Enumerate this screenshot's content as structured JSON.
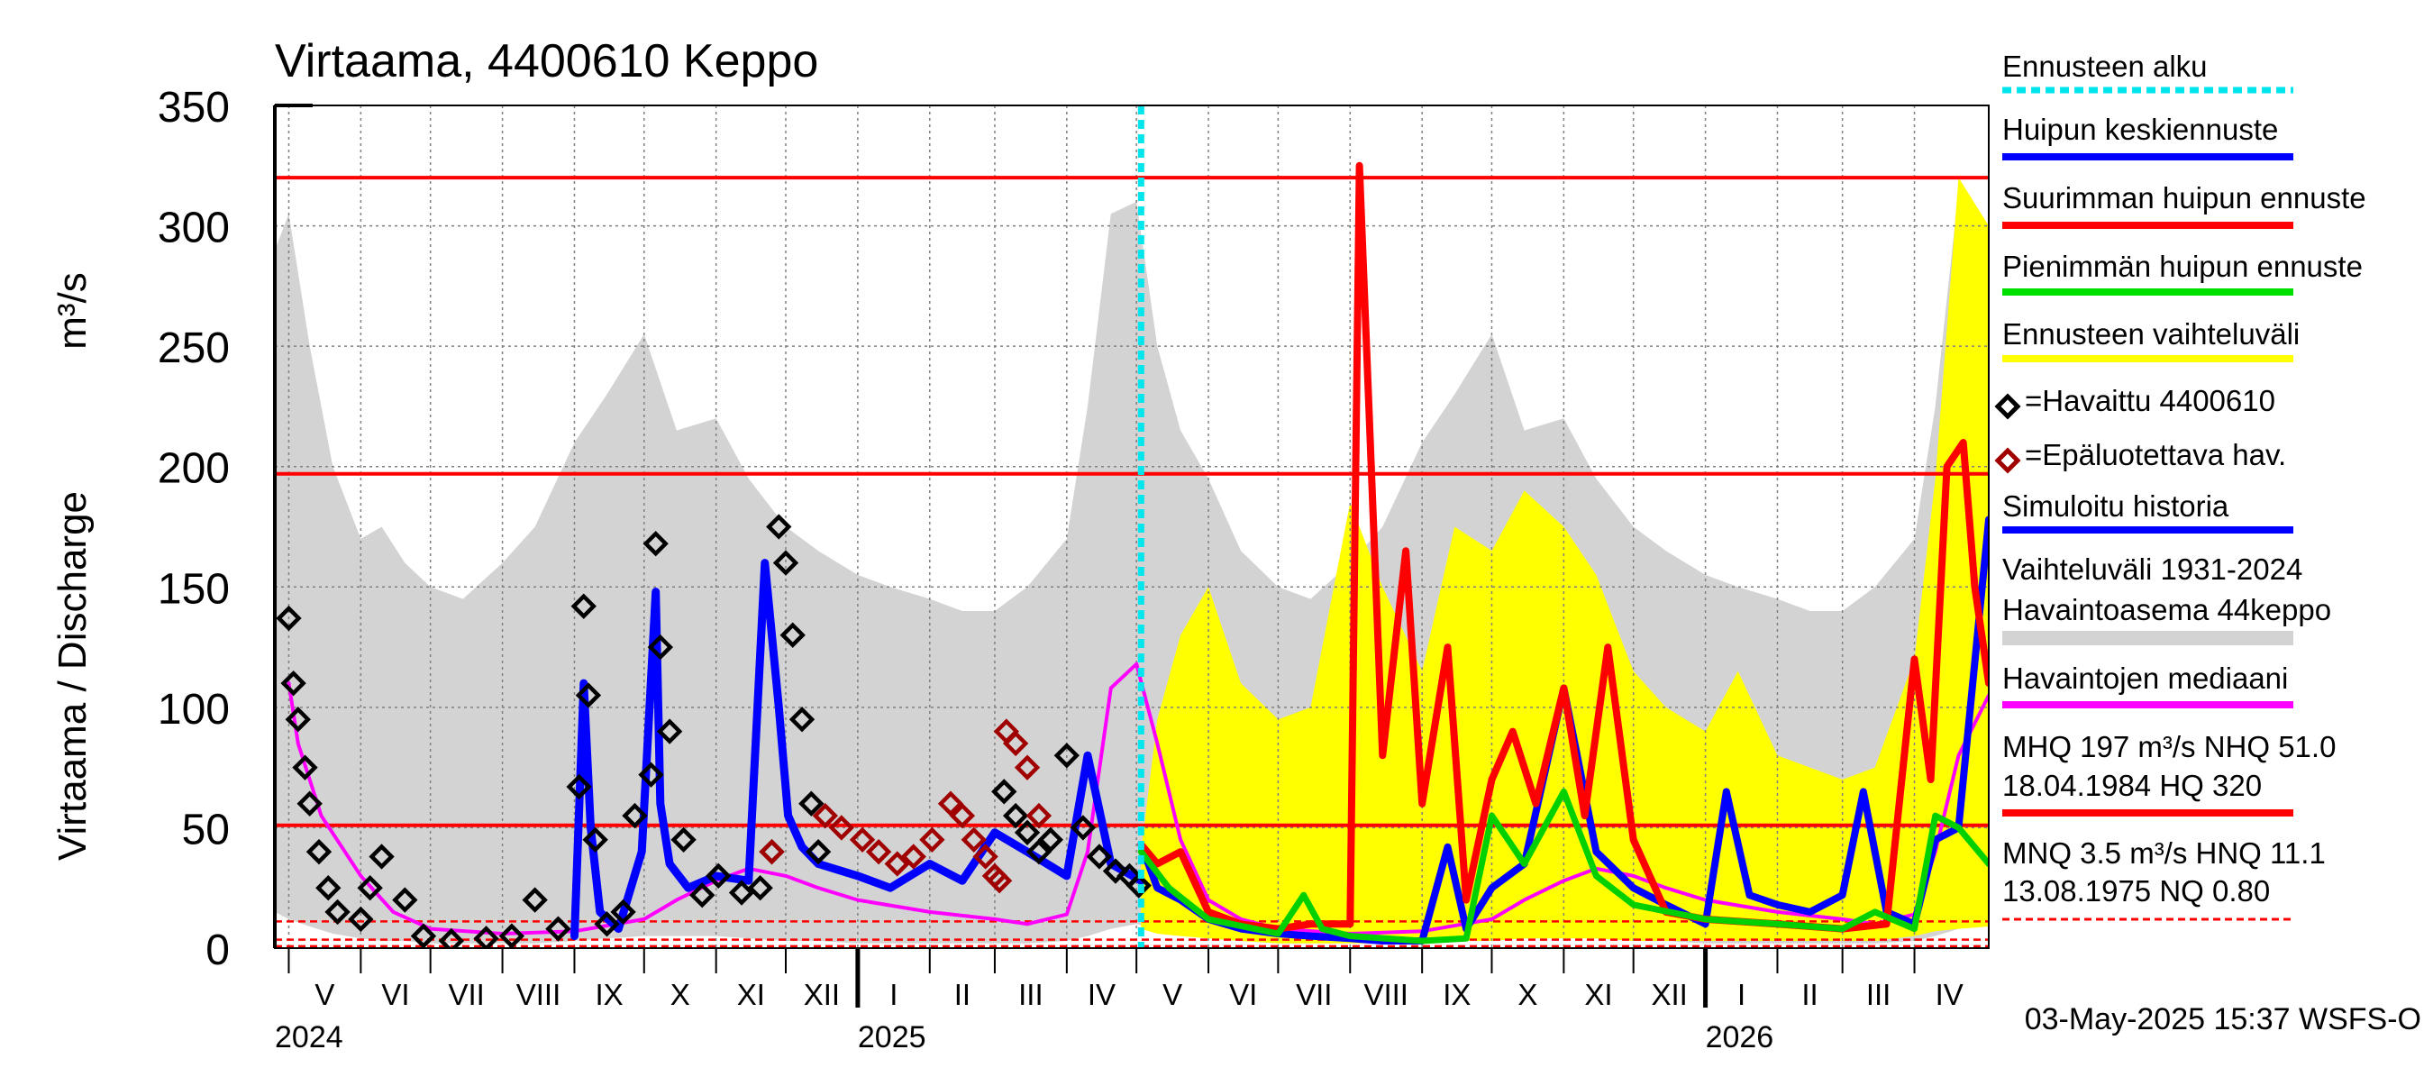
{
  "chart_data": {
    "type": "line",
    "title": "Virtaama, 4400610 Keppo",
    "ylabel": "Virtaama / Discharge",
    "yunit": "m³/s",
    "ylim": [
      0,
      350
    ],
    "yticks": [
      0,
      50,
      100,
      150,
      200,
      250,
      300,
      350
    ],
    "xlim": [
      "2024-04-25",
      "2026-05-03"
    ],
    "grid": true,
    "months": [
      {
        "label": "V",
        "start": "2024-05-01",
        "end": "2024-06-01"
      },
      {
        "label": "VI",
        "start": "2024-06-01",
        "end": "2024-07-01"
      },
      {
        "label": "VII",
        "start": "2024-07-01",
        "end": "2024-08-01"
      },
      {
        "label": "VIII",
        "start": "2024-08-01",
        "end": "2024-09-01"
      },
      {
        "label": "IX",
        "start": "2024-09-01",
        "end": "2024-10-01"
      },
      {
        "label": "X",
        "start": "2024-10-01",
        "end": "2024-11-01"
      },
      {
        "label": "XI",
        "start": "2024-11-01",
        "end": "2024-12-01"
      },
      {
        "label": "XII",
        "start": "2024-12-01",
        "end": "2025-01-01"
      },
      {
        "label": "I",
        "start": "2025-01-01",
        "end": "2025-02-01"
      },
      {
        "label": "II",
        "start": "2025-02-01",
        "end": "2025-03-01"
      },
      {
        "label": "III",
        "start": "2025-03-01",
        "end": "2025-04-01"
      },
      {
        "label": "IV",
        "start": "2025-04-01",
        "end": "2025-05-01"
      },
      {
        "label": "V",
        "start": "2025-05-01",
        "end": "2025-06-01"
      },
      {
        "label": "VI",
        "start": "2025-06-01",
        "end": "2025-07-01"
      },
      {
        "label": "VII",
        "start": "2025-07-01",
        "end": "2025-08-01"
      },
      {
        "label": "VIII",
        "start": "2025-08-01",
        "end": "2025-09-01"
      },
      {
        "label": "IX",
        "start": "2025-09-01",
        "end": "2025-10-01"
      },
      {
        "label": "X",
        "start": "2025-10-01",
        "end": "2025-11-01"
      },
      {
        "label": "XI",
        "start": "2025-11-01",
        "end": "2025-12-01"
      },
      {
        "label": "XII",
        "start": "2025-12-01",
        "end": "2026-01-01"
      },
      {
        "label": "I",
        "start": "2026-01-01",
        "end": "2026-02-01"
      },
      {
        "label": "II",
        "start": "2026-02-01",
        "end": "2026-03-01"
      },
      {
        "label": "III",
        "start": "2026-03-01",
        "end": "2026-04-01"
      },
      {
        "label": "IV",
        "start": "2026-04-01",
        "end": "2026-05-01"
      }
    ],
    "years": [
      {
        "label": "2024",
        "date": "2024-05-01"
      },
      {
        "label": "2025",
        "date": "2025-01-01"
      },
      {
        "label": "2026",
        "date": "2026-01-01"
      }
    ],
    "forecast_start": "2025-05-03",
    "reference_lines": [
      {
        "name": "HQ",
        "value": 320,
        "style": "solid",
        "color": "#ff0000"
      },
      {
        "name": "MHQ",
        "value": 197,
        "style": "solid",
        "color": "#ff0000"
      },
      {
        "name": "NHQ",
        "value": 51.0,
        "style": "solid",
        "color": "#ff0000"
      },
      {
        "name": "HNQ",
        "value": 11.1,
        "style": "dashed",
        "color": "#ff0000"
      },
      {
        "name": "MNQ",
        "value": 3.5,
        "style": "dashed",
        "color": "#ff0000"
      },
      {
        "name": "NQ",
        "value": 0.8,
        "style": "dashed",
        "color": "#ff0000"
      }
    ],
    "series": [
      {
        "name": "Vaihteluväli 1931-2024 Havaintoasema 44keppo",
        "kind": "band",
        "color": "#d3d3d3",
        "x": [
          "2024-04-25",
          "2024-05-01",
          "2024-05-10",
          "2024-05-20",
          "2024-06-01",
          "2024-06-10",
          "2024-06-20",
          "2024-07-01",
          "2024-07-15",
          "2024-08-01",
          "2024-08-15",
          "2024-09-01",
          "2024-09-15",
          "2024-10-01",
          "2024-10-15",
          "2024-11-01",
          "2024-11-15",
          "2024-12-01",
          "2024-12-15",
          "2025-01-01",
          "2025-01-15",
          "2025-02-01",
          "2025-02-15",
          "2025-03-01",
          "2025-03-15",
          "2025-04-01",
          "2025-04-10",
          "2025-04-20",
          "2025-05-01",
          "2025-05-10",
          "2025-05-20",
          "2025-06-01",
          "2025-06-15",
          "2025-07-01",
          "2025-07-15",
          "2025-08-01",
          "2025-08-15",
          "2025-09-01",
          "2025-09-15",
          "2025-10-01",
          "2025-10-15",
          "2025-11-01",
          "2025-11-15",
          "2025-12-01",
          "2025-12-15",
          "2026-01-01",
          "2026-01-15",
          "2026-02-01",
          "2026-02-15",
          "2026-03-01",
          "2026-03-15",
          "2026-04-01",
          "2026-04-10",
          "2026-04-20",
          "2026-05-03"
        ],
        "low": [
          15,
          12,
          9,
          6,
          4,
          3,
          3,
          2,
          2,
          2,
          2,
          3,
          4,
          5,
          5,
          5,
          4,
          3,
          3,
          2,
          2,
          2,
          2,
          2,
          2,
          3,
          5,
          8,
          10,
          8,
          6,
          4,
          3,
          2,
          2,
          2,
          2,
          3,
          4,
          5,
          5,
          5,
          4,
          3,
          3,
          2,
          2,
          2,
          2,
          2,
          2,
          3,
          5,
          8,
          10
        ],
        "high": [
          290,
          305,
          250,
          200,
          170,
          175,
          160,
          150,
          145,
          160,
          175,
          210,
          230,
          255,
          215,
          220,
          195,
          175,
          165,
          155,
          150,
          145,
          140,
          140,
          150,
          170,
          225,
          305,
          310,
          250,
          215,
          195,
          165,
          150,
          145,
          160,
          175,
          210,
          230,
          255,
          215,
          220,
          195,
          175,
          165,
          155,
          150,
          145,
          140,
          140,
          150,
          170,
          225,
          315,
          290
        ]
      },
      {
        "name": "Ennusteen vaihteluväli",
        "kind": "band",
        "color": "#ffff00",
        "x": [
          "2025-05-03",
          "2025-05-10",
          "2025-05-20",
          "2025-06-01",
          "2025-06-15",
          "2025-07-01",
          "2025-07-15",
          "2025-08-01",
          "2025-08-15",
          "2025-09-01",
          "2025-09-15",
          "2025-10-01",
          "2025-10-15",
          "2025-11-01",
          "2025-11-15",
          "2025-12-01",
          "2025-12-15",
          "2026-01-01",
          "2026-01-15",
          "2026-02-01",
          "2026-02-15",
          "2026-03-01",
          "2026-03-15",
          "2026-04-01",
          "2026-04-10",
          "2026-04-20",
          "2026-05-03"
        ],
        "low": [
          8,
          6,
          5,
          4,
          3,
          2,
          2,
          2,
          2,
          2,
          3,
          3,
          4,
          4,
          4,
          3,
          3,
          3,
          3,
          3,
          3,
          3,
          3,
          5,
          7,
          8,
          9
        ],
        "high": [
          40,
          95,
          130,
          150,
          110,
          95,
          100,
          185,
          150,
          115,
          175,
          165,
          190,
          175,
          155,
          115,
          100,
          90,
          115,
          80,
          75,
          70,
          75,
          120,
          195,
          320,
          300
        ]
      },
      {
        "name": "Havaintojen mediaani",
        "kind": "line",
        "color": "#ff00ff",
        "x": [
          "2024-05-01",
          "2024-05-05",
          "2024-05-15",
          "2024-06-01",
          "2024-06-15",
          "2024-07-01",
          "2024-08-01",
          "2024-09-01",
          "2024-10-01",
          "2024-10-15",
          "2024-11-01",
          "2024-11-15",
          "2024-12-01",
          "2024-12-15",
          "2025-01-01",
          "2025-02-01",
          "2025-03-01",
          "2025-03-15",
          "2025-04-01",
          "2025-04-10",
          "2025-04-20",
          "2025-05-01",
          "2025-05-10",
          "2025-05-20",
          "2025-06-01",
          "2025-06-15",
          "2025-07-01",
          "2025-08-01",
          "2025-09-01",
          "2025-10-01",
          "2025-10-15",
          "2025-11-01",
          "2025-11-15",
          "2025-12-01",
          "2025-12-15",
          "2026-01-01",
          "2026-02-01",
          "2026-03-01",
          "2026-03-15",
          "2026-04-01",
          "2026-04-10",
          "2026-04-20",
          "2026-05-03"
        ],
        "y": [
          110,
          85,
          55,
          30,
          15,
          8,
          6,
          7,
          12,
          20,
          28,
          33,
          30,
          25,
          20,
          15,
          12,
          10,
          14,
          40,
          108,
          118,
          85,
          45,
          20,
          12,
          8,
          6,
          7,
          12,
          20,
          28,
          33,
          30,
          25,
          20,
          15,
          12,
          10,
          14,
          40,
          80,
          105
        ]
      },
      {
        "name": "Simuloitu historia",
        "kind": "line",
        "color": "#0000ff",
        "x": [
          "2024-09-01",
          "2024-09-05",
          "2024-09-08",
          "2024-09-12",
          "2024-09-20",
          "2024-09-30",
          "2024-10-06",
          "2024-10-08",
          "2024-10-12",
          "2024-10-20",
          "2024-11-01",
          "2024-11-15",
          "2024-11-22",
          "2024-11-28",
          "2024-12-02",
          "2024-12-08",
          "2024-12-15",
          "2025-01-01",
          "2025-01-15",
          "2025-02-01",
          "2025-02-15",
          "2025-03-01",
          "2025-03-15",
          "2025-04-01",
          "2025-04-10",
          "2025-04-20",
          "2025-05-03"
        ],
        "y": [
          5,
          110,
          50,
          15,
          8,
          40,
          148,
          60,
          35,
          25,
          30,
          28,
          160,
          100,
          55,
          42,
          35,
          30,
          25,
          35,
          28,
          48,
          40,
          30,
          80,
          35,
          28
        ]
      },
      {
        "name": "Havaittu 4400610",
        "kind": "markers",
        "color": "#000000",
        "x": [
          "2024-05-01",
          "2024-05-03",
          "2024-05-05",
          "2024-05-08",
          "2024-05-10",
          "2024-05-14",
          "2024-05-18",
          "2024-05-22",
          "2024-06-01",
          "2024-06-05",
          "2024-06-10",
          "2024-06-20",
          "2024-06-28",
          "2024-07-10",
          "2024-07-25",
          "2024-08-05",
          "2024-08-15",
          "2024-08-25",
          "2024-09-03",
          "2024-09-05",
          "2024-09-07",
          "2024-09-10",
          "2024-09-15",
          "2024-09-22",
          "2024-09-27",
          "2024-10-04",
          "2024-10-06",
          "2024-10-08",
          "2024-10-12",
          "2024-10-18",
          "2024-10-26",
          "2024-11-02",
          "2024-11-12",
          "2024-11-20",
          "2024-11-25",
          "2024-11-28",
          "2024-12-01",
          "2024-12-04",
          "2024-12-08",
          "2024-12-12",
          "2024-12-15",
          "2025-03-05",
          "2025-03-10",
          "2025-03-15",
          "2025-03-20",
          "2025-03-25",
          "2025-04-01",
          "2025-04-08",
          "2025-04-15",
          "2025-04-22",
          "2025-04-28",
          "2025-05-02"
        ],
        "y": [
          137,
          110,
          95,
          75,
          60,
          40,
          25,
          15,
          12,
          25,
          38,
          20,
          5,
          3,
          4,
          5,
          20,
          8,
          67,
          142,
          105,
          45,
          10,
          15,
          55,
          72,
          168,
          125,
          90,
          45,
          22,
          30,
          23,
          25,
          40,
          175,
          160,
          130,
          95,
          60,
          40,
          65,
          55,
          48,
          40,
          45,
          80,
          50,
          38,
          32,
          30,
          26
        ]
      },
      {
        "name": "Epäluotettava hav.",
        "kind": "markers",
        "color": "#a00000",
        "x": [
          "2024-11-25",
          "2024-12-18",
          "2024-12-25",
          "2025-01-03",
          "2025-01-10",
          "2025-01-18",
          "2025-01-25",
          "2025-02-02",
          "2025-02-10",
          "2025-02-15",
          "2025-02-20",
          "2025-02-25",
          "2025-03-01",
          "2025-03-03",
          "2025-03-06",
          "2025-03-10",
          "2025-03-15",
          "2025-03-20"
        ],
        "y": [
          40,
          55,
          50,
          45,
          40,
          35,
          38,
          45,
          60,
          55,
          45,
          38,
          30,
          28,
          90,
          85,
          75,
          55
        ]
      },
      {
        "name": "Huipun keskiennuste",
        "kind": "line",
        "color": "#0000ff",
        "x": [
          "2025-05-03",
          "2025-05-10",
          "2025-05-20",
          "2025-06-01",
          "2025-06-15",
          "2025-07-01",
          "2025-07-15",
          "2025-08-01",
          "2025-08-15",
          "2025-09-01",
          "2025-09-12",
          "2025-09-20",
          "2025-10-01",
          "2025-10-15",
          "2025-11-01",
          "2025-11-15",
          "2025-12-01",
          "2025-12-15",
          "2026-01-01",
          "2026-01-10",
          "2026-01-20",
          "2026-02-01",
          "2026-02-15",
          "2026-03-01",
          "2026-03-10",
          "2026-03-20",
          "2026-04-01",
          "2026-04-10",
          "2026-04-20",
          "2026-05-03"
        ],
        "y": [
          43,
          25,
          20,
          12,
          8,
          6,
          5,
          4,
          3,
          3,
          42,
          8,
          25,
          35,
          108,
          40,
          25,
          18,
          10,
          65,
          22,
          18,
          15,
          22,
          65,
          15,
          10,
          45,
          50,
          178
        ]
      },
      {
        "name": "Suurimman huipun ennuste",
        "kind": "line",
        "color": "#ff0000",
        "x": [
          "2025-05-03",
          "2025-05-10",
          "2025-05-20",
          "2025-06-01",
          "2025-06-15",
          "2025-07-01",
          "2025-07-15",
          "2025-08-01",
          "2025-08-05",
          "2025-08-15",
          "2025-08-25",
          "2025-09-01",
          "2025-09-12",
          "2025-09-20",
          "2025-10-01",
          "2025-10-10",
          "2025-10-20",
          "2025-11-01",
          "2025-11-10",
          "2025-11-20",
          "2025-12-01",
          "2025-12-15",
          "2026-01-01",
          "2026-02-01",
          "2026-03-01",
          "2026-03-20",
          "2026-04-01",
          "2026-04-08",
          "2026-04-15",
          "2026-04-22",
          "2026-04-27",
          "2026-05-03"
        ],
        "y": [
          43,
          35,
          40,
          15,
          10,
          8,
          10,
          10,
          325,
          80,
          165,
          60,
          125,
          20,
          70,
          90,
          60,
          108,
          55,
          125,
          45,
          15,
          12,
          10,
          8,
          10,
          120,
          70,
          200,
          210,
          150,
          110
        ]
      },
      {
        "name": "Pienimmän huipun ennuste",
        "kind": "line",
        "color": "#00d000",
        "x": [
          "2025-05-03",
          "2025-05-15",
          "2025-06-01",
          "2025-07-01",
          "2025-07-12",
          "2025-07-20",
          "2025-08-01",
          "2025-09-01",
          "2025-09-20",
          "2025-10-01",
          "2025-10-15",
          "2025-11-01",
          "2025-11-15",
          "2025-12-01",
          "2026-01-01",
          "2026-02-01",
          "2026-03-01",
          "2026-03-15",
          "2026-04-01",
          "2026-04-10",
          "2026-04-20",
          "2026-05-03"
        ],
        "y": [
          40,
          25,
          12,
          6,
          22,
          8,
          5,
          3,
          4,
          55,
          35,
          65,
          30,
          18,
          12,
          10,
          8,
          15,
          8,
          55,
          50,
          35
        ]
      }
    ],
    "legend": [
      {
        "label": "Ennusteen alku",
        "kind": "dashed",
        "color": "#00e5ee"
      },
      {
        "label": "Huipun keskiennuste",
        "kind": "line",
        "color": "#0000ff"
      },
      {
        "label": "Suurimman huipun ennuste",
        "kind": "line",
        "color": "#ff0000"
      },
      {
        "label": "Pienimmän huipun ennuste",
        "kind": "line",
        "color": "#00e000"
      },
      {
        "label": "Ennusteen vaihteluväli",
        "kind": "line",
        "color": "#ffff00"
      },
      {
        "label": "=Havaittu 4400610",
        "kind": "marker",
        "color": "#000000"
      },
      {
        "label": "=Epäluotettava hav.",
        "kind": "marker",
        "color": "#a00000"
      },
      {
        "label": "Simuloitu historia",
        "kind": "line",
        "color": "#0000ff"
      },
      {
        "label": "Vaihteluväli 1931-2024",
        "label2": " Havaintoasema 44keppo",
        "kind": "thick",
        "color": "#d3d3d3"
      },
      {
        "label": "Havaintojen mediaani",
        "kind": "line",
        "color": "#ff00ff"
      },
      {
        "label": "MHQ  197 m³/s NHQ 51.0",
        "label2": "18.04.1984 HQ  320",
        "kind": "line",
        "color": "#ff0000"
      },
      {
        "label": "MNQ  3.5 m³/s HNQ 11.1",
        "label2": "13.08.1975 NQ 0.80",
        "kind": "dashed",
        "color": "#ff0000"
      }
    ],
    "footer": "03-May-2025 15:37 WSFS-O"
  }
}
